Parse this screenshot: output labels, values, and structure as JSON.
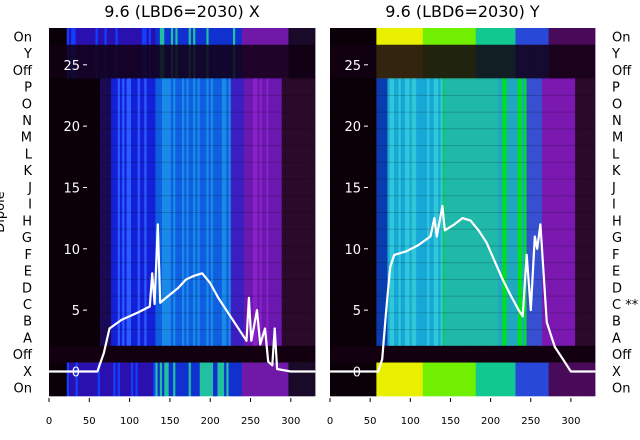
{
  "chart_data": [
    {
      "type": "heatmap",
      "title": "9.6 (LBD6=2030) X",
      "ylabel": "Dipole",
      "xticks": [
        0,
        50,
        100,
        150,
        200,
        250,
        300
      ],
      "xlim": [
        0,
        330
      ],
      "inner_yticks": [
        25,
        20,
        15,
        10,
        5,
        0
      ],
      "inner_ylim": [
        -2,
        28
      ],
      "row_labels": [
        "On",
        "Y",
        "Off",
        "P",
        "O",
        "N",
        "M",
        "L",
        "K",
        "J",
        "I",
        "H",
        "G",
        "F",
        "E",
        "D",
        "C",
        "B",
        "A",
        "Off",
        "X",
        "On"
      ],
      "colormap": "gist_ncar",
      "trace_color": "#ffffff",
      "trace": [
        [
          0,
          0
        ],
        [
          60,
          0
        ],
        [
          68,
          1.5
        ],
        [
          75,
          3.5
        ],
        [
          90,
          4.2
        ],
        [
          110,
          4.8
        ],
        [
          125,
          5.3
        ],
        [
          128,
          8
        ],
        [
          131,
          5.5
        ],
        [
          135,
          12
        ],
        [
          138,
          5.6
        ],
        [
          145,
          6
        ],
        [
          160,
          6.8
        ],
        [
          170,
          7.5
        ],
        [
          180,
          7.8
        ],
        [
          190,
          8
        ],
        [
          200,
          7.2
        ],
        [
          210,
          6
        ],
        [
          225,
          4.5
        ],
        [
          240,
          3
        ],
        [
          245,
          2.5
        ],
        [
          248,
          6
        ],
        [
          251,
          2.5
        ],
        [
          258,
          5
        ],
        [
          262,
          2.2
        ],
        [
          268,
          3.5
        ],
        [
          272,
          0.8
        ],
        [
          277,
          0.5
        ],
        [
          280,
          3.5
        ],
        [
          283,
          0.2
        ],
        [
          300,
          0
        ],
        [
          330,
          0
        ]
      ]
    },
    {
      "type": "heatmap",
      "title": "9.6 (LBD6=2030) Y",
      "xticks": [
        0,
        50,
        100,
        150,
        200,
        250,
        300
      ],
      "xlim": [
        0,
        330
      ],
      "inner_yticks": [
        25,
        20,
        15,
        10,
        5,
        0
      ],
      "inner_ylim": [
        -2,
        28
      ],
      "row_labels": [
        "On",
        "Y",
        "Off",
        "P",
        "O",
        "N",
        "M",
        "L",
        "K",
        "J",
        "I",
        "H",
        "G",
        "F",
        "E",
        "D",
        "C **",
        "B",
        "A",
        "Off",
        "X",
        "On"
      ],
      "colormap": "gist_ncar",
      "trace_color": "#ffffff",
      "trace": [
        [
          0,
          0
        ],
        [
          60,
          0
        ],
        [
          65,
          1
        ],
        [
          70,
          5
        ],
        [
          75,
          8.5
        ],
        [
          80,
          9.5
        ],
        [
          95,
          9.8
        ],
        [
          110,
          10.3
        ],
        [
          125,
          11
        ],
        [
          130,
          12.5
        ],
        [
          133,
          11
        ],
        [
          140,
          13.5
        ],
        [
          143,
          11.5
        ],
        [
          155,
          12
        ],
        [
          165,
          12.5
        ],
        [
          175,
          12.3
        ],
        [
          185,
          11.5
        ],
        [
          195,
          10.5
        ],
        [
          205,
          9
        ],
        [
          215,
          7.5
        ],
        [
          225,
          6.2
        ],
        [
          235,
          5
        ],
        [
          240,
          4.5
        ],
        [
          245,
          9.5
        ],
        [
          250,
          5
        ],
        [
          255,
          11
        ],
        [
          258,
          10
        ],
        [
          262,
          12
        ],
        [
          266,
          8
        ],
        [
          270,
          4
        ],
        [
          280,
          2
        ],
        [
          290,
          1
        ],
        [
          300,
          0
        ],
        [
          330,
          0
        ]
      ]
    }
  ]
}
